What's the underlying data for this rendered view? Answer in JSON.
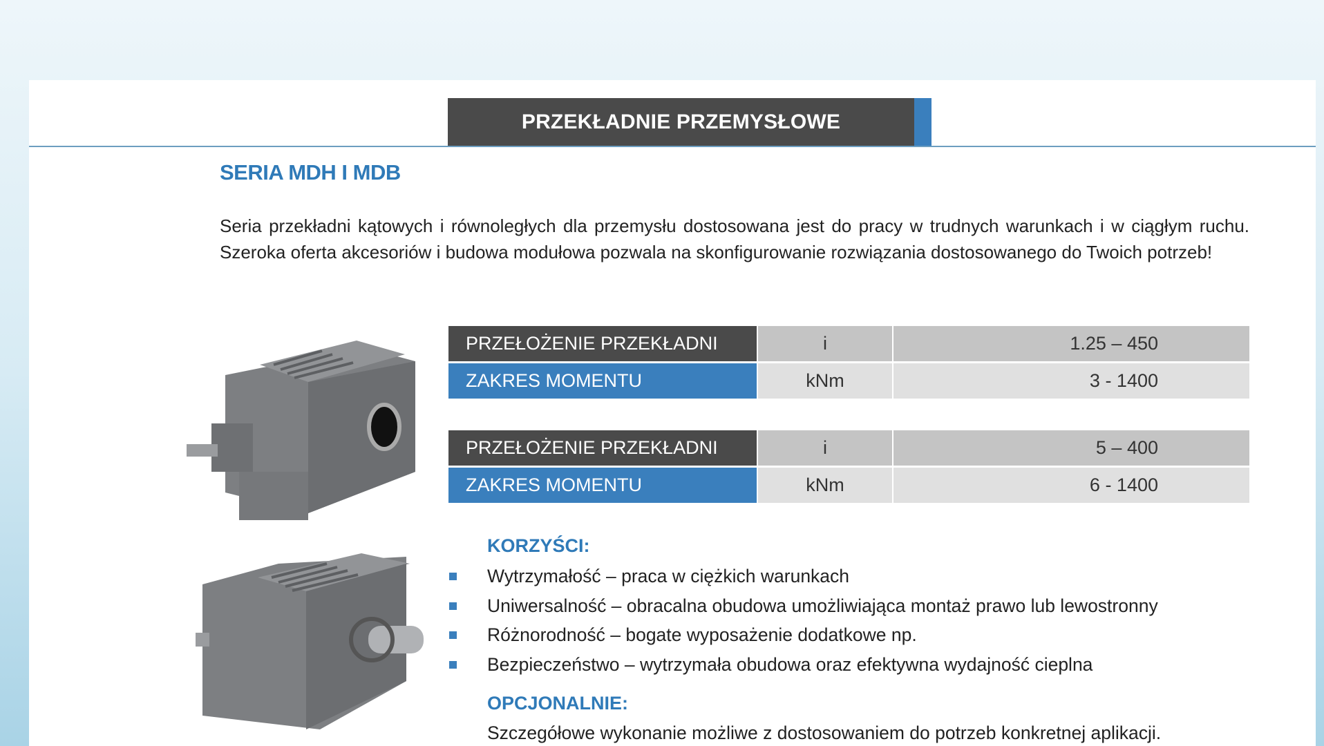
{
  "header": {
    "title": "PRZEKŁADNIE PRZEMYSŁOWE",
    "accent": "#3a7fbd"
  },
  "section": {
    "title": "SERIA MDH I MDB",
    "description": "Seria przekładni kątowych i równoległych dla przemysłu dostosowana jest do pracy w trudnych warunkach i w ciągłym ruchu. Szeroka oferta akcesoriów i budowa modułowa pozwala na skonfigurowanie rozwiązania dostosowanego do Twoich potrzeb!"
  },
  "tables": [
    {
      "rows": [
        {
          "label": "PRZEŁOŻENIE PRZEKŁADNI",
          "unit": "i",
          "value": "1.25 – 450"
        },
        {
          "label": "ZAKRES MOMENTU",
          "unit": "kNm",
          "value": "3 - 1400"
        }
      ]
    },
    {
      "rows": [
        {
          "label": "PRZEŁOŻENIE PRZEKŁADNI",
          "unit": "i",
          "value": "5 – 400"
        },
        {
          "label": "ZAKRES MOMENTU",
          "unit": "kNm",
          "value": "6 - 1400"
        }
      ]
    }
  ],
  "benefits": {
    "title": "KORZYŚCI:",
    "items": [
      "Wytrzymałość – praca w ciężkich warunkach",
      "Uniwersalność – obracalna obudowa umożliwiająca montaż prawo lub lewostronny",
      "Różnorodność – bogate wyposażenie dodatkowe np.",
      "Bezpieczeństwo – wytrzymała obudowa oraz efektywna wydajność cieplna"
    ]
  },
  "optional": {
    "title": "OPCJONALNIE:",
    "text": "Szczegółowe wykonanie możliwe z dostosowaniem do potrzeb konkretnej aplikacji."
  }
}
